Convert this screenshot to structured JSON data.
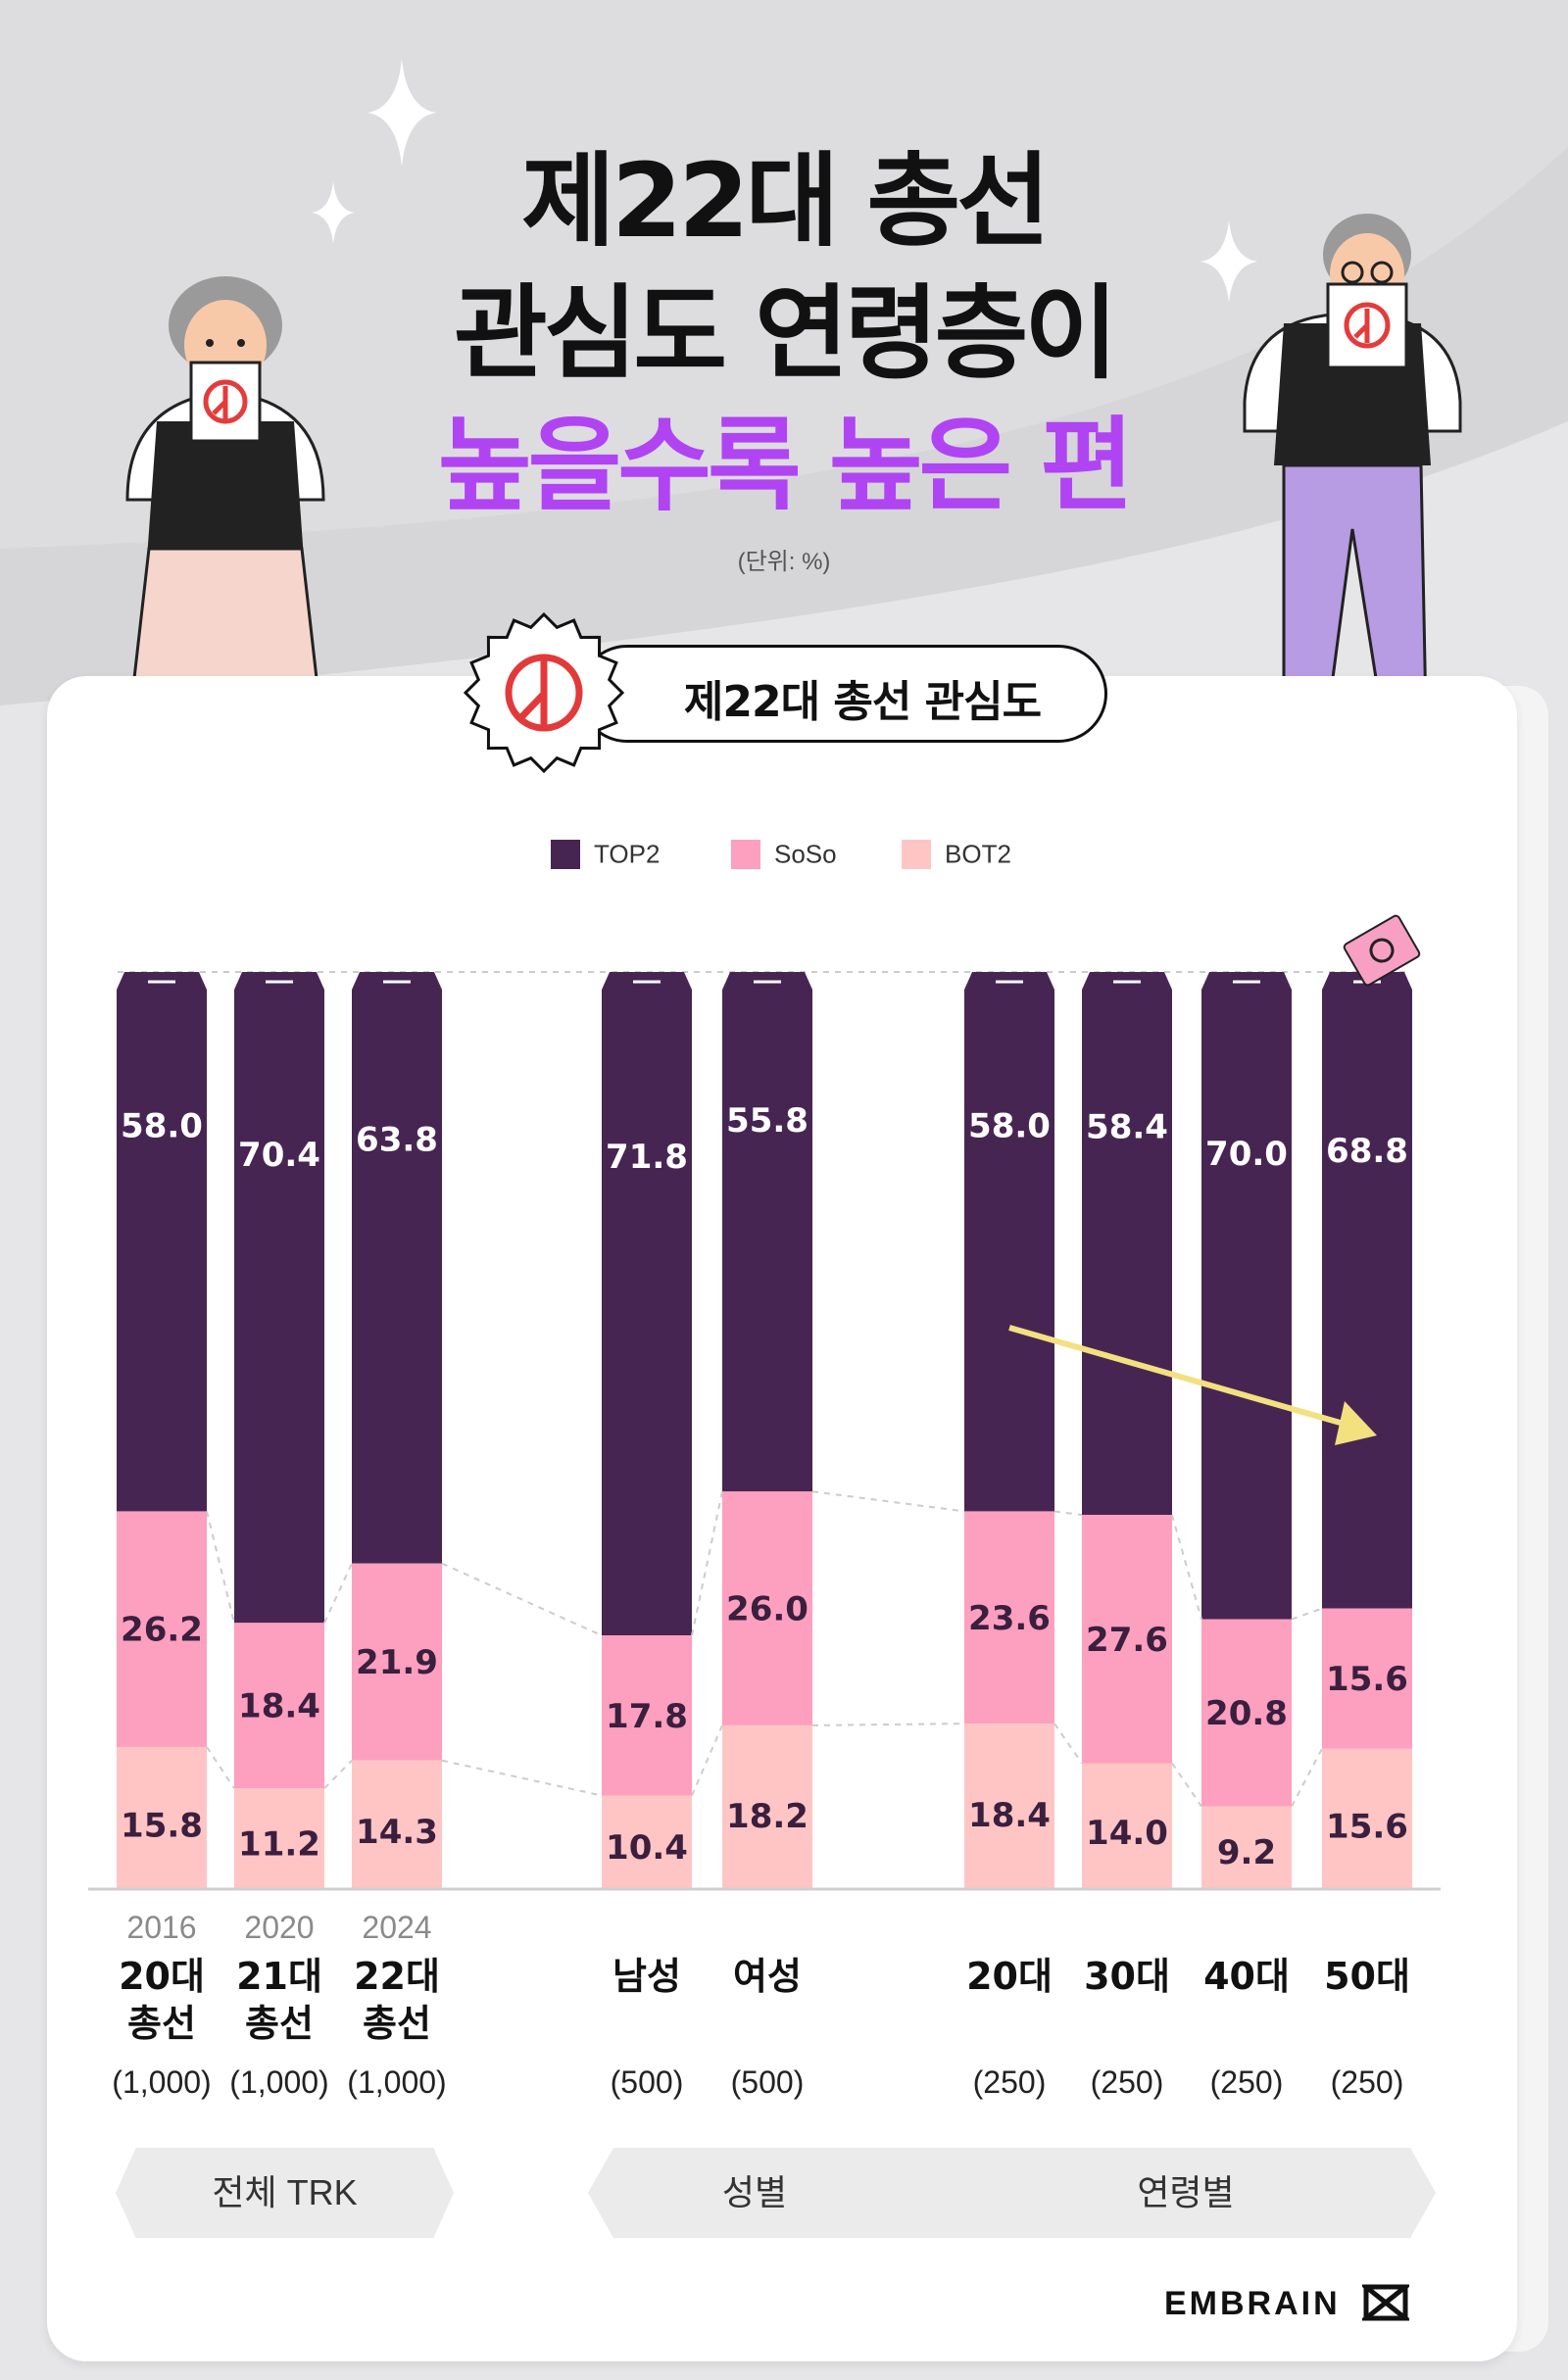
{
  "title": {
    "line1": "제22대 총선",
    "line2": "관심도 연령층이",
    "line3": "높을수록 높은 편"
  },
  "unit": "(단위: %)",
  "chart_heading": "제22대 총선 관심도",
  "legend": [
    {
      "label": "TOP2",
      "color": "#472553"
    },
    {
      "label": "SoSo",
      "color": "#fd9fbf"
    },
    {
      "label": "BOT2",
      "color": "#ffc5c5"
    }
  ],
  "chart_data": {
    "type": "bar",
    "stacked": true,
    "categories": [
      "20대 총선",
      "21대 총선",
      "22대 총선",
      "남성",
      "여성",
      "20대",
      "30대",
      "40대",
      "50대"
    ],
    "years": [
      "2016",
      "2020",
      "2024",
      "",
      "",
      "",
      "",
      "",
      ""
    ],
    "sample_sizes": [
      "(1,000)",
      "(1,000)",
      "(1,000)",
      "(500)",
      "(500)",
      "(250)",
      "(250)",
      "(250)",
      "(250)"
    ],
    "series": [
      {
        "name": "TOP2",
        "values": [
          58.0,
          70.4,
          63.8,
          71.8,
          55.8,
          58.0,
          58.4,
          70.0,
          68.8
        ]
      },
      {
        "name": "SoSo",
        "values": [
          26.2,
          18.4,
          21.9,
          17.8,
          26.0,
          23.6,
          27.6,
          20.8,
          15.6
        ]
      },
      {
        "name": "BOT2",
        "values": [
          15.8,
          11.2,
          14.3,
          10.4,
          18.2,
          18.4,
          14.0,
          9.2,
          15.6
        ]
      }
    ],
    "ylim": [
      0,
      100
    ]
  },
  "groups": [
    {
      "label": "전체 TRK"
    },
    {
      "label": "성별"
    },
    {
      "label": "연령별"
    }
  ],
  "brand": "EMBRAIN"
}
